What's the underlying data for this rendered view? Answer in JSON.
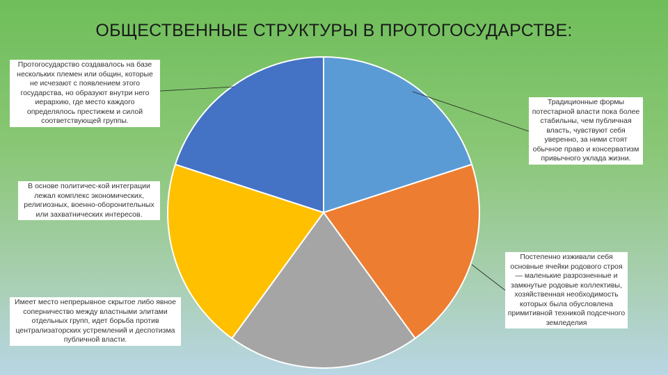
{
  "title": "ОБЩЕСТВЕННЫЕ СТРУКТУРЫ В ПРОТОГОСУДАРСТВЕ:",
  "chart_data": {
    "type": "pie",
    "slices": [
      {
        "value": 20,
        "color": "#5b9bd5",
        "label": "Традиционные формы потестарной власти пока более стабильны, чем публичная власть, чувствуют себя уверенно, за ними стоят обычное право и консерватизм привычного уклада жизни."
      },
      {
        "value": 20,
        "color": "#ed7d31",
        "label": "Постепенно изживали себя основные ячейки родового строя — маленькие разрозненные и замкнутые родовые коллективы, хозяйственная необходимость которых была обусловлена примитивной техникой подсечного земледелия"
      },
      {
        "value": 20,
        "color": "#a5a5a5",
        "label": "Имеет место непрерывное скрытое либо явное соперничество между властными элитами отдельных групп, идет борьба против централизаторских устремлений и деспотизма публичной власти."
      },
      {
        "value": 20,
        "color": "#ffc000",
        "label": "В основе политичес-кой интеграции лежал комплекс экономических, религиозных, военно-оборонительных или захватнических интересов."
      },
      {
        "value": 20,
        "color": "#4472c4",
        "label": "Протогосударство создавалось на базе нескольких племен или общин, которые не исчезают с появлением этого государства, но образуют внутри него иерархию, где место каждого определялось престижем и силой соответствующей группы."
      }
    ]
  }
}
